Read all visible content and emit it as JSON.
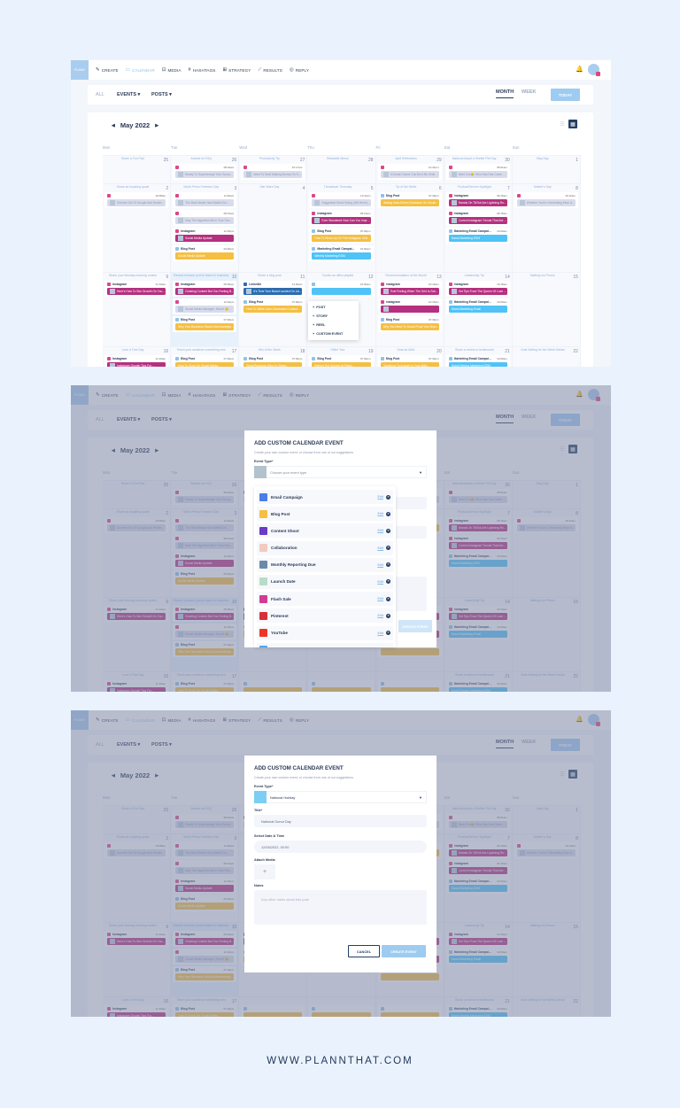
{
  "nav": {
    "logo": "PLANN",
    "items": [
      {
        "icon": "create-icon",
        "glyph": "✎",
        "label": "CREATE"
      },
      {
        "icon": "calendar-icon",
        "glyph": "▭",
        "label": "CALENDAR",
        "active": true
      },
      {
        "icon": "media-icon",
        "glyph": "⊡",
        "label": "MEDIA"
      },
      {
        "icon": "hashtag-icon",
        "glyph": "#",
        "label": "HASHTAGS"
      },
      {
        "icon": "strategy-icon",
        "glyph": "⊞",
        "label": "STRATEGY"
      },
      {
        "icon": "results-icon",
        "glyph": "⟋",
        "label": "RESULTS"
      },
      {
        "icon": "reply-icon",
        "glyph": "◎",
        "label": "REPLY"
      }
    ]
  },
  "filters": {
    "all": "ALL",
    "events": "EVENTS ▾",
    "posts": "POSTS ▾",
    "month": "MONTH",
    "week": "WEEK",
    "today": "TODAY"
  },
  "calendar": {
    "title": "May 2022",
    "weekdays": [
      "Mon",
      "Tue",
      "Wed",
      "Thu",
      "Fri",
      "Sat",
      "Sun"
    ],
    "colors": {
      "instagram": "#b5307f",
      "blog": "#f5bf42",
      "email": "#4fc3f7",
      "linkedin": "#2a6cb0",
      "past": "#d8dcec"
    },
    "weeks": [
      [
        {
          "l": "Share a Fun Fact",
          "n": "25",
          "e": []
        },
        {
          "l": "Answer an FAQ",
          "n": "26",
          "e": [
            {
              "t": "past",
              "h": "",
              "tm": "08:24am",
              "x": "Ready To Supercharge Your Socia..."
            }
          ]
        },
        {
          "l": "Productivity Tip",
          "n": "27",
          "e": [
            {
              "t": "past",
              "h": "",
              "tm": "10:17am",
              "x": "Want To Start Making Money On So..."
            }
          ]
        },
        {
          "l": "Relatable Meme",
          "n": "28",
          "e": []
        },
        {
          "l": "April Reflections",
          "n": "29",
          "e": [
            {
              "t": "past",
              "h": "",
              "tm": "12:31pm",
              "x": "A Social Career Can Be A Be Orde d..."
            }
          ]
        },
        {
          "l": "National Adopt a Shelter Pet Day",
          "n": "30",
          "e": [
            {
              "t": "past",
              "h": "",
              "tm": "05:01am",
              "x": "Meet Coo😊 Who Has Has Come O..."
            }
          ]
        },
        {
          "l": "May Day",
          "n": "1",
          "e": []
        }
      ],
      [
        {
          "l": "Share an inspiring quote",
          "n": "2",
          "e": [
            {
              "t": "past",
              "h": "",
              "tm": "10:08am",
              "x": "Secrets Out Of Google And Health..."
            }
          ]
        },
        {
          "l": "World Press Freedom Day",
          "n": "3",
          "e": [
            {
              "t": "past",
              "h": "",
              "tm": "11:40am",
              "x": "The Best Media Hard Battle Dru..."
            },
            {
              "t": "past",
              "h": "",
              "tm": "08:13am",
              "x": "May The Algorithm Be In Your Fav..."
            },
            {
              "t": "instagram",
              "h": "Instagram",
              "tm": "12:30pm",
              "x": "Social Media Update"
            },
            {
              "t": "blog",
              "h": "Blog Post",
              "tm": "03:30pm",
              "x": "Social Media Update"
            }
          ]
        },
        {
          "l": "Star Wars Day",
          "n": "4",
          "e": []
        },
        {
          "l": "Throwback Thursday",
          "n": "5",
          "e": [
            {
              "t": "past",
              "h": "",
              "tm": "10:11am",
              "x": "Suggested Mood Swing (Wit Hmm)..."
            },
            {
              "t": "instagram",
              "h": "Instagram",
              "tm": "09:15am",
              "x": "Ever Wondered How Can You Improv..."
            },
            {
              "t": "blog",
              "h": "Blog Post",
              "tm": "07:30pm",
              "x": "How To Show Up On The Instagram Grid..."
            },
            {
              "t": "email",
              "h": "Marketing Email Campai...",
              "tm": "10:00am",
              "x": "Weekly Marketing EDM"
            }
          ]
        },
        {
          "l": "Tip of the Week",
          "n": "6",
          "e": [
            {
              "t": "blog",
              "h": "Blog Post",
              "tm": "07:30pm",
              "x": "Making Data-Driven Decisions On Social..."
            }
          ]
        },
        {
          "l": "Product/Service Spotlight",
          "n": "7",
          "e": [
            {
              "t": "instagram",
              "h": "Instagram",
              "tm": "09:15am",
              "x": "Brands On TikTok Are Lightning Ro..."
            },
            {
              "t": "instagram",
              "h": "Instagram",
              "tm": "05:15am",
              "x": "Current Instagram Trends That Are W..."
            },
            {
              "t": "email",
              "h": "Marketing Email Campai...",
              "tm": "10:00am",
              "x": "Brand Marketing EDM"
            }
          ]
        },
        {
          "l": "Mother's Day",
          "n": "8",
          "e": [
            {
              "t": "past",
              "h": "",
              "tm": "10:12am",
              "x": "Whether You're Celebrating Mum A..."
            }
          ]
        }
      ],
      [
        {
          "l": "Share your Monday morning routine",
          "n": "9",
          "e": [
            {
              "t": "instagram",
              "h": "Instagram",
              "tm": "11:10am",
              "x": "Here's How To See Growth On Your In..."
            }
          ]
        },
        {
          "l": "Reveal a lesson you've learnt in business",
          "n": "10",
          "hl": true,
          "e": [
            {
              "t": "instagram",
              "h": "Instagram",
              "tm": "05:00am",
              "x": "Creating Content But You Feeling B..."
            },
            {
              "t": "past",
              "h": "",
              "tm": "12:32pm",
              "x": "Social Media Manager, Secret 🤫..."
            },
            {
              "t": "blog",
              "h": "Blog Post",
              "tm": "07:30pm",
              "x": "Why Your Business Should Acknowledge..."
            }
          ]
        },
        {
          "l": "Share a blog post",
          "n": "11",
          "e": [
            {
              "t": "linkedin",
              "h": "LinkedIn",
              "tm": "11:30am",
              "x": "It's Time Your Brand Landed On Lin..."
            },
            {
              "t": "blog",
              "h": "Blog Post",
              "tm": "07:30pm",
              "x": "How To Utilize User-Generated Content..."
            }
          ]
        },
        {
          "l": "Curate an office playlist",
          "n": "12",
          "e": [
            {
              "t": "email",
              "h": "",
              "tm": "10:00am",
              "x": ""
            }
          ]
        },
        {
          "l": "Recommendation of the Month",
          "n": "13",
          "e": [
            {
              "t": "instagram",
              "h": "Instagram",
              "tm": "10:15am",
              "x": "That Feeling When The Grid Is Sched..."
            },
            {
              "t": "instagram",
              "h": "Instagram",
              "tm": "10:15am",
              "x": ""
            },
            {
              "t": "blog",
              "h": "Blog Post",
              "tm": "07:30pm",
              "x": "Why You Need To Social Proof Your Bran..."
            }
          ]
        },
        {
          "l": "Leadership Tip",
          "n": "14",
          "e": [
            {
              "t": "instagram",
              "h": "Instagram",
              "tm": "10:15am",
              "x": "Hot Tips From The Queen Of Luxe 👑..."
            },
            {
              "t": "email",
              "h": "Marketing Email Campai...",
              "tm": "10:00am",
              "x": "Brand Marketing Email"
            }
          ]
        },
        {
          "l": "Mailing List Promo",
          "n": "15",
          "e": []
        }
      ],
      [
        {
          "l": "Love a Tree Day",
          "n": "16",
          "e": [
            {
              "t": "instagram",
              "h": "Instagram",
              "tm": "11:10am",
              "x": "Instagram Growth Tips For..."
            }
          ]
        },
        {
          "l": "Teach your audience something new",
          "n": "17",
          "e": [
            {
              "t": "blog",
              "h": "Blog Post",
              "tm": "07:30pm",
              "x": "How To Grow On Social Media..."
            }
          ]
        },
        {
          "l": "Win of the Week",
          "n": "18",
          "e": [
            {
              "t": "blog",
              "h": "Blog Post",
              "tm": "07:30pm",
              "x": "Small Business Wins To Share..."
            }
          ]
        },
        {
          "l": "Office Tour",
          "n": "19",
          "e": [
            {
              "t": "blog",
              "h": "Blog Post",
              "tm": "07:30pm",
              "x": "Behind The Scenes At Plann..."
            }
          ]
        },
        {
          "l": "Host an AMA",
          "n": "20",
          "e": [
            {
              "t": "blog",
              "h": "Blog Post",
              "tm": "07:30pm",
              "x": "Questions To Answer In Your AMA..."
            }
          ]
        },
        {
          "l": "Share a review or testimonial",
          "n": "21",
          "e": [
            {
              "t": "email",
              "h": "Marketing Email Campai...",
              "tm": "10:00am",
              "x": "Brand Review Marketing EDM"
            }
          ]
        },
        {
          "l": "Goal Setting for the Week Ahead",
          "n": "22",
          "e": []
        }
      ]
    ],
    "menu": [
      "POST",
      "STORY",
      "REEL",
      "CUSTOM EVENT"
    ]
  },
  "modal1": {
    "title": "ADD CUSTOM CALENDAR EVENT",
    "subtitle": "Create your own custom event, or choose from one of our suggestions",
    "event_type_label": "Event Type*",
    "placeholder": "Choose your event type",
    "edit": "Edit",
    "create": "CREATE EVENT",
    "options": [
      {
        "label": "Email Campaign",
        "color": "#4a7ee8"
      },
      {
        "label": "Blog Post",
        "color": "#f5bf42"
      },
      {
        "label": "Content Shoot",
        "color": "#6a3bc4"
      },
      {
        "label": "Collaboration",
        "color": "#f1cbc0"
      },
      {
        "label": "Monthly Reporting Due",
        "color": "#6a8aa8"
      },
      {
        "label": "Launch Date",
        "color": "#b8dcc8"
      },
      {
        "label": "Flash Sale",
        "color": "#d13c93"
      },
      {
        "label": "Pinterest",
        "color": "#d7303a"
      },
      {
        "label": "YouTube",
        "color": "#ee3427"
      },
      {
        "label": "",
        "color": "#4aa8ef"
      }
    ]
  },
  "modal2": {
    "title": "ADD CUSTOM CALENDAR EVENT",
    "subtitle": "Create your own custom event, or choose from one of our suggestions",
    "event_type_label": "Event Type*",
    "event_type": "National Holiday",
    "event_color": "#7ccff2",
    "title_label": "Title*",
    "title_value": "National Donut Day",
    "date_label": "Select Date & Time",
    "date_value": "12/05/2022, 00:00",
    "media_label": "Attach Media",
    "notes_label": "Notes",
    "notes_placeholder": "Any other notes about this post",
    "cancel": "CANCEL",
    "create": "CREATE EVENT"
  },
  "footer": "WWW.PLANNTHAT.COM"
}
